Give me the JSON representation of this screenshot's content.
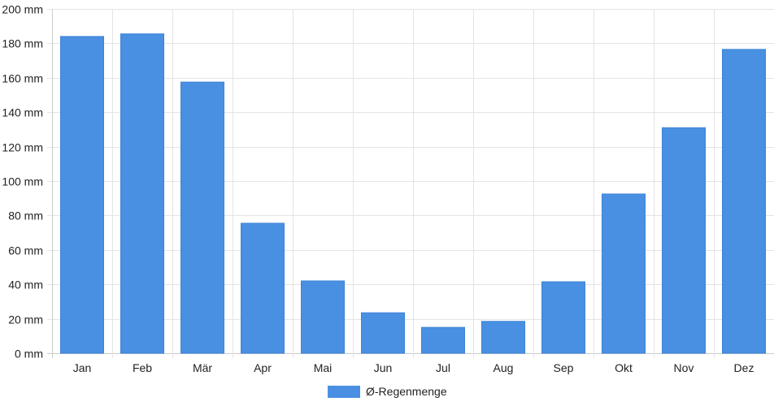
{
  "chart_data": {
    "type": "bar",
    "categories": [
      "Jan",
      "Feb",
      "Mär",
      "Apr",
      "Mai",
      "Jun",
      "Jul",
      "Aug",
      "Sep",
      "Okt",
      "Nov",
      "Dez"
    ],
    "series": [
      {
        "name": "Ø-Regenmenge",
        "values": [
          184,
          185.5,
          157.5,
          75.5,
          42,
          23.5,
          15,
          18.5,
          41.5,
          92.5,
          131,
          176.5
        ],
        "color": "#4a90e2"
      }
    ],
    "ylim": [
      0,
      200
    ],
    "ytick_step": 20,
    "ytick_suffix": " mm",
    "grid": true,
    "legend": "bottom-center"
  }
}
